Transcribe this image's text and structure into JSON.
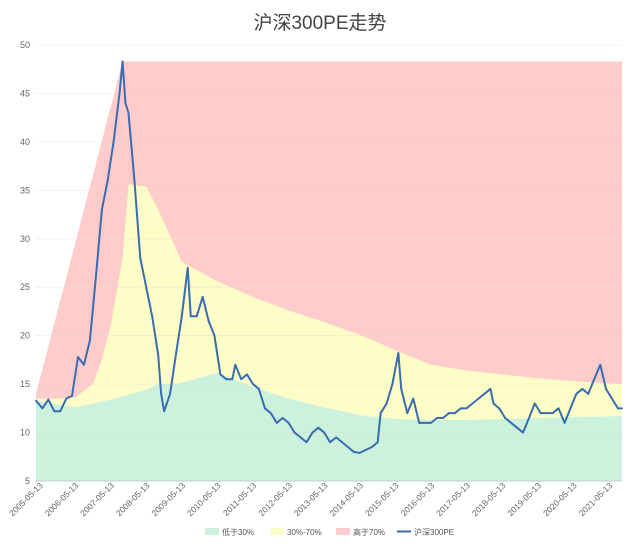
{
  "chart_data": {
    "type": "area",
    "title": "沪深300PE走势",
    "xlabel": "",
    "ylabel": "",
    "ylim": [
      5,
      50
    ],
    "yticks": [
      5,
      10,
      15,
      20,
      25,
      30,
      35,
      40,
      45,
      50
    ],
    "x_tick_labels": [
      "2005-05-13",
      "2006-05-13",
      "2007-05-13",
      "2008-05-13",
      "2009-05-13",
      "2010-05-13",
      "2011-05-13",
      "2012-05-13",
      "2013-05-13",
      "2014-05-13",
      "2015-05-13",
      "2016-05-13",
      "2017-05-13",
      "2018-05-13",
      "2019-05-13",
      "2020-05-13",
      "2021-05-13"
    ],
    "x_start": "2005-04-08",
    "x_end": "2021-09-24",
    "legend_position": "bottom",
    "grid": true,
    "series": [
      {
        "name": "低于30%",
        "color": "#ccf2dd",
        "kind": "area",
        "points": [
          [
            "2005-04-08",
            13.3
          ],
          [
            "2006-05-13",
            12.6
          ],
          [
            "2006-11-13",
            13.0
          ],
          [
            "2007-05-13",
            13.4
          ],
          [
            "2007-11-13",
            13.9
          ],
          [
            "2008-05-13",
            14.4
          ],
          [
            "2008-09-13",
            15.0
          ],
          [
            "2009-03-13",
            15.0
          ],
          [
            "2009-09-13",
            15.5
          ],
          [
            "2010-05-13",
            16.2
          ],
          [
            "2011-05-13",
            14.7
          ],
          [
            "2011-11-13",
            14.1
          ],
          [
            "2012-05-13",
            13.5
          ],
          [
            "2013-05-13",
            12.6
          ],
          [
            "2014-05-13",
            11.8
          ],
          [
            "2015-05-13",
            11.4
          ],
          [
            "2016-05-13",
            11.3
          ],
          [
            "2017-05-13",
            11.3
          ],
          [
            "2018-05-13",
            11.4
          ],
          [
            "2019-05-13",
            11.5
          ],
          [
            "2020-05-13",
            11.6
          ],
          [
            "2021-09-24",
            11.7
          ]
        ]
      },
      {
        "name": "30%-70%",
        "color": "#fdfdc8",
        "kind": "area",
        "points": [
          [
            "2005-04-08",
            13.5
          ],
          [
            "2005-11-13",
            13.5
          ],
          [
            "2006-05-13",
            13.6
          ],
          [
            "2006-11-13",
            15.0
          ],
          [
            "2007-02-13",
            17.5
          ],
          [
            "2007-05-13",
            21.0
          ],
          [
            "2007-09-13",
            28.0
          ],
          [
            "2007-11-13",
            35.6
          ],
          [
            "2008-05-13",
            35.4
          ],
          [
            "2008-09-13",
            33.0
          ],
          [
            "2009-03-13",
            29.0
          ],
          [
            "2009-05-13",
            27.6
          ],
          [
            "2010-05-13",
            25.6
          ],
          [
            "2011-05-13",
            24.0
          ],
          [
            "2012-05-13",
            22.6
          ],
          [
            "2013-05-13",
            21.4
          ],
          [
            "2014-05-13",
            20.1
          ],
          [
            "2015-05-13",
            18.5
          ],
          [
            "2016-05-13",
            17.0
          ],
          [
            "2017-05-13",
            16.4
          ],
          [
            "2018-05-13",
            16.0
          ],
          [
            "2019-05-13",
            15.6
          ],
          [
            "2020-05-13",
            15.3
          ],
          [
            "2021-09-24",
            15.0
          ]
        ]
      },
      {
        "name": "高于70%",
        "color": "#ffcccc",
        "kind": "area",
        "points": [
          [
            "2005-04-08",
            14.0
          ],
          [
            "2007-09-13",
            48.3
          ],
          [
            "2021-09-24",
            48.3
          ]
        ]
      },
      {
        "name": "沪深300PE",
        "color": "#3a6cb0",
        "kind": "line",
        "points": [
          [
            "2005-04-08",
            13.3
          ],
          [
            "2005-06-13",
            12.5
          ],
          [
            "2005-08-13",
            13.4
          ],
          [
            "2005-10-13",
            12.2
          ],
          [
            "2005-12-13",
            12.2
          ],
          [
            "2006-02-13",
            13.5
          ],
          [
            "2006-04-13",
            13.8
          ],
          [
            "2006-06-13",
            17.8
          ],
          [
            "2006-08-13",
            17.0
          ],
          [
            "2006-10-13",
            19.5
          ],
          [
            "2006-12-13",
            26.0
          ],
          [
            "2007-02-13",
            33.0
          ],
          [
            "2007-04-13",
            36.0
          ],
          [
            "2007-06-13",
            40.0
          ],
          [
            "2007-08-13",
            45.0
          ],
          [
            "2007-09-13",
            48.3
          ],
          [
            "2007-10-13",
            44.0
          ],
          [
            "2007-11-13",
            43.0
          ],
          [
            "2008-01-13",
            36.0
          ],
          [
            "2008-03-13",
            28.0
          ],
          [
            "2008-05-13",
            25.0
          ],
          [
            "2008-07-13",
            22.0
          ],
          [
            "2008-09-13",
            18.0
          ],
          [
            "2008-10-13",
            14.0
          ],
          [
            "2008-11-13",
            12.2
          ],
          [
            "2009-01-13",
            14.0
          ],
          [
            "2009-03-13",
            18.0
          ],
          [
            "2009-05-13",
            22.0
          ],
          [
            "2009-07-13",
            27.0
          ],
          [
            "2009-08-13",
            22.0
          ],
          [
            "2009-10-13",
            22.0
          ],
          [
            "2009-12-13",
            24.0
          ],
          [
            "2010-02-13",
            21.5
          ],
          [
            "2010-04-13",
            20.0
          ],
          [
            "2010-06-13",
            16.0
          ],
          [
            "2010-08-13",
            15.5
          ],
          [
            "2010-10-13",
            15.5
          ],
          [
            "2010-11-13",
            17.0
          ],
          [
            "2011-01-13",
            15.5
          ],
          [
            "2011-03-13",
            16.0
          ],
          [
            "2011-05-13",
            15.0
          ],
          [
            "2011-07-13",
            14.5
          ],
          [
            "2011-09-13",
            12.5
          ],
          [
            "2011-11-13",
            12.0
          ],
          [
            "2012-01-13",
            11.0
          ],
          [
            "2012-03-13",
            11.5
          ],
          [
            "2012-05-13",
            11.0
          ],
          [
            "2012-07-13",
            10.0
          ],
          [
            "2012-09-13",
            9.5
          ],
          [
            "2012-11-13",
            9.0
          ],
          [
            "2013-01-13",
            10.0
          ],
          [
            "2013-03-13",
            10.5
          ],
          [
            "2013-05-13",
            10.0
          ],
          [
            "2013-07-13",
            9.0
          ],
          [
            "2013-09-13",
            9.5
          ],
          [
            "2013-11-13",
            9.0
          ],
          [
            "2014-01-13",
            8.5
          ],
          [
            "2014-03-13",
            8.0
          ],
          [
            "2014-05-13",
            7.9
          ],
          [
            "2014-07-13",
            8.2
          ],
          [
            "2014-09-13",
            8.5
          ],
          [
            "2014-11-13",
            9.0
          ],
          [
            "2014-12-13",
            12.0
          ],
          [
            "2015-02-13",
            13.0
          ],
          [
            "2015-04-13",
            15.0
          ],
          [
            "2015-06-13",
            18.2
          ],
          [
            "2015-07-13",
            14.5
          ],
          [
            "2015-09-13",
            12.0
          ],
          [
            "2015-11-13",
            13.5
          ],
          [
            "2016-01-13",
            11.0
          ],
          [
            "2016-03-13",
            11.0
          ],
          [
            "2016-05-13",
            11.0
          ],
          [
            "2016-07-13",
            11.5
          ],
          [
            "2016-09-13",
            11.5
          ],
          [
            "2016-11-13",
            12.0
          ],
          [
            "2017-01-13",
            12.0
          ],
          [
            "2017-03-13",
            12.5
          ],
          [
            "2017-05-13",
            12.5
          ],
          [
            "2017-07-13",
            13.0
          ],
          [
            "2017-09-13",
            13.5
          ],
          [
            "2017-11-13",
            14.0
          ],
          [
            "2018-01-13",
            14.5
          ],
          [
            "2018-02-13",
            13.0
          ],
          [
            "2018-04-13",
            12.5
          ],
          [
            "2018-06-13",
            11.5
          ],
          [
            "2018-08-13",
            11.0
          ],
          [
            "2018-10-13",
            10.5
          ],
          [
            "2018-12-13",
            10.0
          ],
          [
            "2019-02-13",
            11.5
          ],
          [
            "2019-04-13",
            13.0
          ],
          [
            "2019-06-13",
            12.0
          ],
          [
            "2019-08-13",
            12.0
          ],
          [
            "2019-10-13",
            12.0
          ],
          [
            "2019-12-13",
            12.5
          ],
          [
            "2020-02-13",
            11.0
          ],
          [
            "2020-04-13",
            12.5
          ],
          [
            "2020-06-13",
            14.0
          ],
          [
            "2020-08-13",
            14.5
          ],
          [
            "2020-10-13",
            14.0
          ],
          [
            "2020-12-13",
            15.5
          ],
          [
            "2021-02-13",
            17.0
          ],
          [
            "2021-04-13",
            14.5
          ],
          [
            "2021-06-13",
            13.5
          ],
          [
            "2021-08-13",
            12.5
          ],
          [
            "2021-09-24",
            12.5
          ]
        ]
      }
    ]
  }
}
